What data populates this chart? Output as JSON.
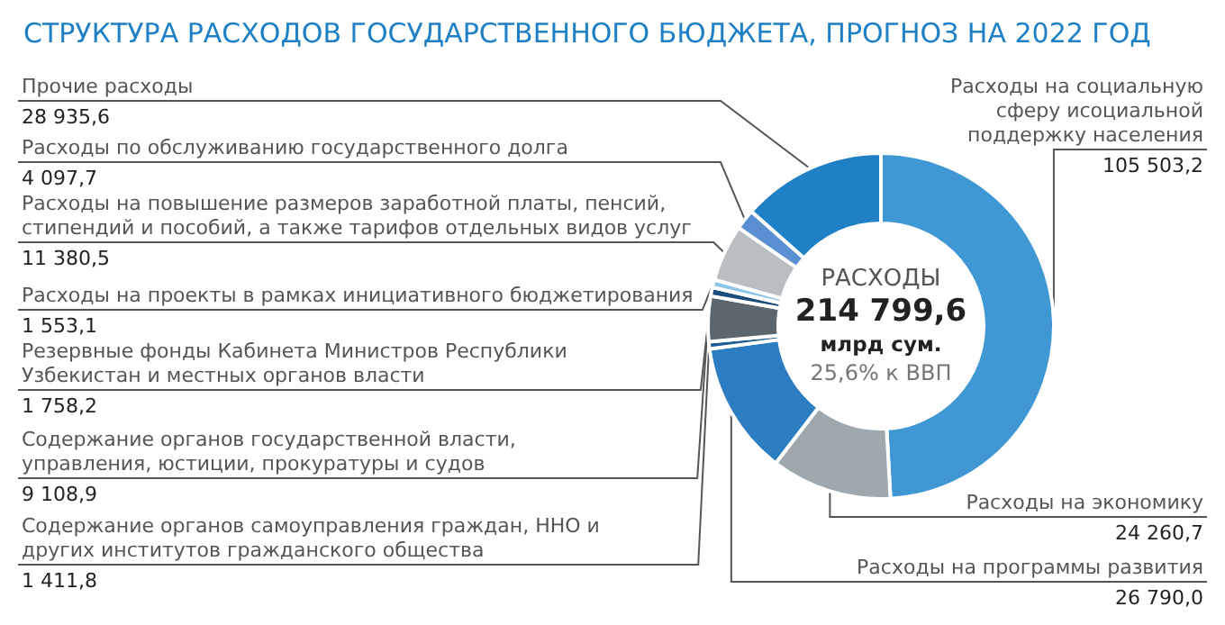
{
  "chart_data": {
    "type": "donut",
    "title": "СТРУКТУРА РАСХОДОВ ГОСУДАРСТВЕННОГО БЮДЖЕТА, ПРОГНОЗ НА 2022 ГОД",
    "categories": [
      "Расходы на социальную\nсферу исоциальной\nподдержку населения",
      "Расходы на экономику",
      "Расходы на программы развития",
      "Содержание органов самоуправления граждан, ННО и\nдругих институтов гражданского общества",
      "Содержание органов государственной власти,\nуправления, юстиции, прокуратуры и судов",
      "Резервные фонды Кабинета Министров Республики\nУзбекистан и местных органов власти",
      "Расходы на проекты в рамках инициативного бюджетирования",
      "Расходы на повышение размеров заработной платы, пенсий,\nстипендий и пособий, а также тарифов отдельных видов услуг",
      "Расходы по обслуживанию государственного долга",
      "Прочие расходы"
    ],
    "values": [
      105503.2,
      24260.7,
      26790.0,
      1411.8,
      9108.9,
      1758.2,
      1553.1,
      11380.5,
      4097.7,
      28935.6
    ],
    "value_labels": [
      "105 503,2",
      "24 260,7",
      "26 790,0",
      "1 411,8",
      "9 108,9",
      "1 758,2",
      "1 553,1",
      "11 380,5",
      "4 097,7",
      "28 935,6"
    ],
    "colors": [
      "#3f98d4",
      "#9ea8ad",
      "#2c7dc1",
      "#1d5d92",
      "#5b676d",
      "#1b4e7c",
      "#8cc4e8",
      "#b8bec2",
      "#5a8fd2",
      "#1f80c5"
    ],
    "annotations": [
      "РАСХОДЫ",
      "214 799,6",
      "млрд сум.",
      "25,6% к ВВП"
    ],
    "legend": false
  }
}
